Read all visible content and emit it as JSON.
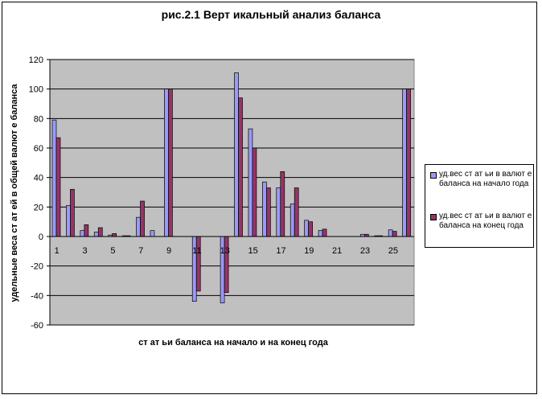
{
  "chart_data": {
    "type": "bar",
    "title": "рис.2.1 Верт икальный анализ баланса",
    "xlabel": "ст ат ьи баланса на начало и на конец года",
    "ylabel": "удельные веса ст ат ей в общей валют е баланса",
    "ylim": [
      -60,
      120
    ],
    "yticks": [
      -60,
      -40,
      -20,
      0,
      20,
      40,
      60,
      80,
      100,
      120
    ],
    "grid": true,
    "legend_position": "right",
    "categories": [
      "1",
      "2",
      "3",
      "4",
      "5",
      "6",
      "7",
      "8",
      "9",
      "10",
      "11",
      "12",
      "13",
      "14",
      "15",
      "16",
      "17",
      "18",
      "19",
      "20",
      "21",
      "22",
      "23",
      "24",
      "25",
      "26"
    ],
    "x_tick_labels": [
      "1",
      "",
      "3",
      "",
      "5",
      "",
      "7",
      "",
      "9",
      "",
      "11",
      "",
      "13",
      "",
      "15",
      "",
      "17",
      "",
      "19",
      "",
      "21",
      "",
      "23",
      "",
      "25",
      ""
    ],
    "series": [
      {
        "name": "уд.вес ст ат ьи в валют е баланса на начало года",
        "color": "#9999ff",
        "values": [
          79,
          21,
          4,
          3,
          1,
          0.5,
          13,
          4,
          100,
          0,
          -44,
          0,
          -45,
          111,
          73,
          37,
          33,
          22,
          11,
          4,
          0,
          0,
          1.5,
          0.5,
          4.5,
          100
        ]
      },
      {
        "name": "уд.вес ст ат ьи в валют е баланса на конец года",
        "color": "#993366",
        "values": [
          67,
          32,
          8,
          6,
          2,
          0.5,
          24,
          0,
          100,
          0,
          -37,
          0,
          -38,
          94,
          60,
          33,
          44,
          33,
          10,
          5,
          0,
          0,
          1.5,
          0.5,
          3.5,
          100
        ]
      }
    ]
  }
}
